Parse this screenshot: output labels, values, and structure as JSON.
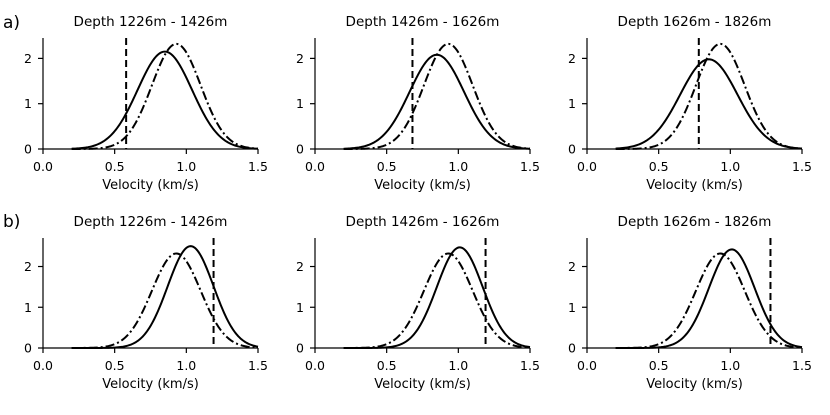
{
  "row_labels": [
    "a)",
    "b)"
  ],
  "chart_data": [
    {
      "type": "line",
      "panel": "a1",
      "title": "Depth 1226m - 1426m",
      "xlabel": "Velocity (km/s)",
      "xlim": [
        0.0,
        1.5
      ],
      "ylim": [
        0,
        2.45
      ],
      "xticks": [
        "0.0",
        "0.5",
        "1.0",
        "1.5"
      ],
      "yticks": [
        "0",
        "1",
        "2"
      ],
      "curve_domain": [
        0.2,
        1.5
      ],
      "series": [
        {
          "style": "solid",
          "shape": "gaussian",
          "mean": 0.85,
          "sd": 0.19,
          "peak": 2.15
        },
        {
          "style": "dashdot",
          "shape": "gaussian",
          "mean": 0.93,
          "sd": 0.17,
          "peak": 2.32
        }
      ],
      "vline": {
        "style": "dashed",
        "x": 0.58
      }
    },
    {
      "type": "line",
      "panel": "a2",
      "title": "Depth 1426m - 1626m",
      "xlabel": "Velocity (km/s)",
      "xlim": [
        0.0,
        1.5
      ],
      "ylim": [
        0,
        2.45
      ],
      "xticks": [
        "0.0",
        "0.5",
        "1.0",
        "1.5"
      ],
      "yticks": [
        "0",
        "1",
        "2"
      ],
      "curve_domain": [
        0.2,
        1.5
      ],
      "series": [
        {
          "style": "solid",
          "shape": "gaussian",
          "mean": 0.85,
          "sd": 0.19,
          "peak": 2.08
        },
        {
          "style": "dashdot",
          "shape": "gaussian",
          "mean": 0.93,
          "sd": 0.17,
          "peak": 2.32
        }
      ],
      "vline": {
        "style": "dashed",
        "x": 0.68
      }
    },
    {
      "type": "line",
      "panel": "a3",
      "title": "Depth 1626m - 1826m",
      "xlabel": "Velocity (km/s)",
      "xlim": [
        0.0,
        1.5
      ],
      "ylim": [
        0,
        2.45
      ],
      "xticks": [
        "0.0",
        "0.5",
        "1.0",
        "1.5"
      ],
      "yticks": [
        "0",
        "1",
        "2"
      ],
      "curve_domain": [
        0.2,
        1.5
      ],
      "series": [
        {
          "style": "solid",
          "shape": "gaussian",
          "mean": 0.85,
          "sd": 0.2,
          "peak": 1.98
        },
        {
          "style": "dashdot",
          "shape": "gaussian",
          "mean": 0.93,
          "sd": 0.17,
          "peak": 2.32
        }
      ],
      "vline": {
        "style": "dashed",
        "x": 0.78
      }
    },
    {
      "type": "line",
      "panel": "b1",
      "title": "Depth 1226m - 1426m",
      "xlabel": "Velocity (km/s)",
      "xlim": [
        0.0,
        1.5
      ],
      "ylim": [
        0,
        2.7
      ],
      "xticks": [
        "0.0",
        "0.5",
        "1.0",
        "1.5"
      ],
      "yticks": [
        "0",
        "1",
        "2"
      ],
      "curve_domain": [
        0.2,
        1.5
      ],
      "series": [
        {
          "style": "solid",
          "shape": "gaussian",
          "mean": 1.03,
          "sd": 0.16,
          "peak": 2.5
        },
        {
          "style": "dashdot",
          "shape": "gaussian",
          "mean": 0.93,
          "sd": 0.17,
          "peak": 2.32
        }
      ],
      "vline": {
        "style": "dashed",
        "x": 1.19
      }
    },
    {
      "type": "line",
      "panel": "b2",
      "title": "Depth 1426m - 1626m",
      "xlabel": "Velocity (km/s)",
      "xlim": [
        0.0,
        1.5
      ],
      "ylim": [
        0,
        2.7
      ],
      "xticks": [
        "0.0",
        "0.5",
        "1.0",
        "1.5"
      ],
      "yticks": [
        "0",
        "1",
        "2"
      ],
      "curve_domain": [
        0.2,
        1.5
      ],
      "series": [
        {
          "style": "solid",
          "shape": "gaussian",
          "mean": 1.01,
          "sd": 0.16,
          "peak": 2.47
        },
        {
          "style": "dashdot",
          "shape": "gaussian",
          "mean": 0.93,
          "sd": 0.17,
          "peak": 2.32
        }
      ],
      "vline": {
        "style": "dashed",
        "x": 1.19
      }
    },
    {
      "type": "line",
      "panel": "b3",
      "title": "Depth 1626m - 1826m",
      "xlabel": "Velocity (km/s)",
      "xlim": [
        0.0,
        1.5
      ],
      "ylim": [
        0,
        2.7
      ],
      "xticks": [
        "0.0",
        "0.5",
        "1.0",
        "1.5"
      ],
      "yticks": [
        "0",
        "1",
        "2"
      ],
      "curve_domain": [
        0.2,
        1.5
      ],
      "series": [
        {
          "style": "solid",
          "shape": "gaussian",
          "mean": 1.01,
          "sd": 0.16,
          "peak": 2.42
        },
        {
          "style": "dashdot",
          "shape": "gaussian",
          "mean": 0.93,
          "sd": 0.17,
          "peak": 2.32
        }
      ],
      "vline": {
        "style": "dashed",
        "x": 1.28
      }
    }
  ]
}
